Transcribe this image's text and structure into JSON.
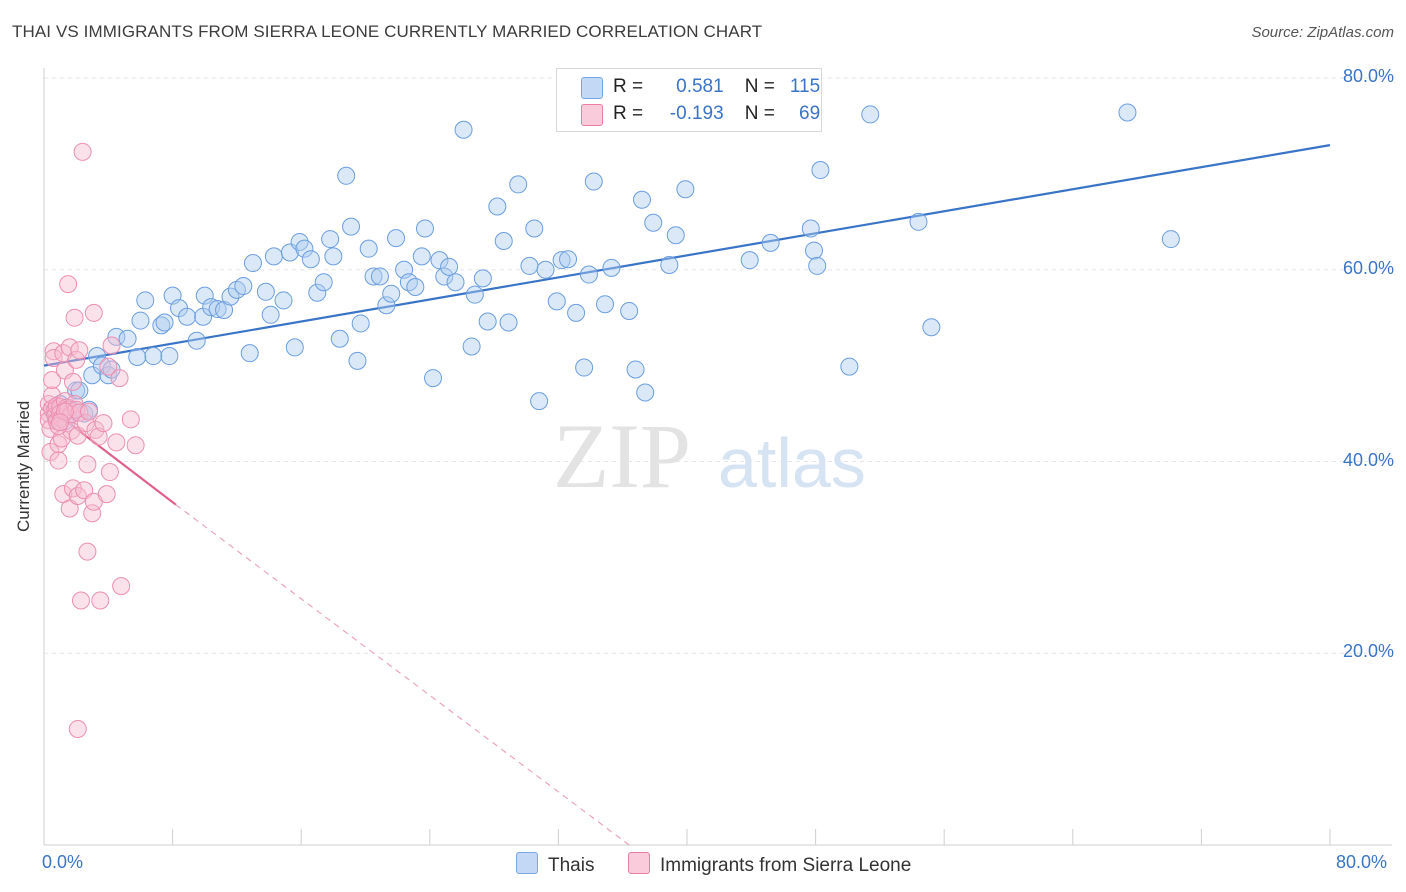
{
  "title": "THAI VS IMMIGRANTS FROM SIERRA LEONE CURRENTLY MARRIED CORRELATION CHART",
  "source": "Source: ZipAtlas.com",
  "watermark": {
    "zip": "ZIP",
    "atlas": "atlas"
  },
  "legend": {
    "r_label": "R =",
    "n_label": "N =",
    "series": [
      {
        "name": "Thais",
        "r": "0.581",
        "n": "115",
        "color": "#7aa7e4",
        "fill": "#aecbf0"
      },
      {
        "name": "Immigrants from Sierra Leone",
        "r": "-0.193",
        "n": "69",
        "color": "#e87fa3",
        "fill": "#f6bcd0"
      }
    ]
  },
  "chart_data": {
    "type": "scatter",
    "title": "THAI VS IMMIGRANTS FROM SIERRA LEONE CURRENTLY MARRIED CORRELATION CHART",
    "xlabel": "",
    "ylabel": "Currently Married",
    "xlim": [
      0,
      80
    ],
    "ylim": [
      0,
      80
    ],
    "x_ticks": [
      "0.0%",
      "80.0%"
    ],
    "y_ticks": [
      "20.0%",
      "40.0%",
      "60.0%",
      "80.0%"
    ],
    "grid": true,
    "legend_position": "top-center",
    "series": [
      {
        "name": "Thais",
        "color": "#3a74c6",
        "trend": {
          "x": [
            0,
            80
          ],
          "y": [
            50.0,
            73.0
          ],
          "style": "solid"
        },
        "points": [
          [
            0.6,
            45.2
          ],
          [
            0.8,
            44.5
          ],
          [
            1.0,
            46.0
          ],
          [
            1.2,
            45.0
          ],
          [
            1.5,
            45.6
          ],
          [
            1.8,
            45.3
          ],
          [
            2.0,
            47.4
          ],
          [
            2.2,
            47.4
          ],
          [
            2.5,
            45.0
          ],
          [
            3.0,
            49.0
          ],
          [
            3.3,
            51.0
          ],
          [
            3.6,
            50.0
          ],
          [
            4.0,
            49.0
          ],
          [
            4.2,
            49.6
          ],
          [
            4.5,
            53.0
          ],
          [
            5.2,
            52.8
          ],
          [
            6.0,
            54.7
          ],
          [
            6.3,
            56.8
          ],
          [
            6.8,
            51.0
          ],
          [
            7.3,
            54.2
          ],
          [
            7.8,
            51.0
          ],
          [
            8.0,
            57.3
          ],
          [
            8.4,
            56.0
          ],
          [
            8.9,
            55.1
          ],
          [
            9.5,
            52.6
          ],
          [
            9.9,
            55.1
          ],
          [
            10.0,
            57.3
          ],
          [
            10.4,
            56.1
          ],
          [
            10.8,
            55.9
          ],
          [
            11.2,
            55.8
          ],
          [
            11.6,
            57.2
          ],
          [
            12.0,
            57.9
          ],
          [
            12.4,
            58.3
          ],
          [
            12.8,
            51.3
          ],
          [
            13.0,
            60.7
          ],
          [
            13.8,
            57.7
          ],
          [
            14.1,
            55.3
          ],
          [
            14.3,
            61.4
          ],
          [
            14.9,
            56.8
          ],
          [
            15.3,
            61.8
          ],
          [
            15.6,
            51.9
          ],
          [
            15.9,
            62.9
          ],
          [
            16.2,
            62.2
          ],
          [
            16.6,
            61.1
          ],
          [
            17.0,
            57.6
          ],
          [
            17.4,
            58.7
          ],
          [
            17.8,
            63.2
          ],
          [
            18.0,
            61.4
          ],
          [
            18.4,
            52.8
          ],
          [
            18.8,
            69.8
          ],
          [
            19.1,
            64.5
          ],
          [
            19.5,
            50.5
          ],
          [
            19.7,
            54.4
          ],
          [
            20.2,
            62.2
          ],
          [
            20.5,
            59.3
          ],
          [
            20.9,
            59.3
          ],
          [
            21.3,
            56.3
          ],
          [
            21.6,
            57.5
          ],
          [
            21.9,
            63.3
          ],
          [
            22.4,
            60.0
          ],
          [
            22.7,
            58.7
          ],
          [
            23.1,
            58.2
          ],
          [
            23.5,
            61.4
          ],
          [
            23.7,
            64.3
          ],
          [
            24.2,
            48.7
          ],
          [
            24.6,
            61.0
          ],
          [
            24.9,
            59.3
          ],
          [
            25.2,
            60.3
          ],
          [
            25.6,
            58.7
          ],
          [
            26.1,
            74.6
          ],
          [
            26.6,
            52.0
          ],
          [
            26.8,
            57.4
          ],
          [
            27.3,
            59.1
          ],
          [
            27.6,
            54.6
          ],
          [
            28.2,
            66.6
          ],
          [
            28.6,
            63.0
          ],
          [
            28.9,
            54.5
          ],
          [
            29.5,
            68.9
          ],
          [
            30.2,
            60.4
          ],
          [
            30.5,
            64.3
          ],
          [
            30.8,
            46.3
          ],
          [
            31.2,
            60.0
          ],
          [
            31.9,
            56.7
          ],
          [
            32.2,
            61.0
          ],
          [
            32.6,
            61.1
          ],
          [
            33.1,
            55.5
          ],
          [
            33.6,
            49.8
          ],
          [
            33.9,
            59.5
          ],
          [
            34.2,
            69.2
          ],
          [
            34.9,
            56.4
          ],
          [
            35.3,
            60.2
          ],
          [
            36.4,
            55.7
          ],
          [
            36.8,
            49.6
          ],
          [
            37.2,
            67.3
          ],
          [
            37.4,
            47.2
          ],
          [
            37.9,
            64.9
          ],
          [
            38.9,
            60.5
          ],
          [
            39.3,
            63.6
          ],
          [
            39.9,
            68.4
          ],
          [
            43.9,
            61.0
          ],
          [
            45.2,
            62.8
          ],
          [
            47.7,
            64.3
          ],
          [
            47.9,
            62.0
          ],
          [
            48.1,
            60.4
          ],
          [
            48.3,
            70.4
          ],
          [
            50.1,
            49.9
          ],
          [
            51.4,
            76.2
          ],
          [
            54.4,
            65.0
          ],
          [
            55.2,
            54.0
          ],
          [
            67.4,
            76.4
          ],
          [
            70.1,
            63.2
          ],
          [
            7.5,
            54.5
          ],
          [
            1.3,
            44.2
          ],
          [
            2.8,
            45.4
          ],
          [
            5.8,
            50.9
          ]
        ]
      },
      {
        "name": "Immigrants from Sierra Leone",
        "color": "#e0608a",
        "trend": {
          "x": [
            0,
            8.2,
            36.4
          ],
          "y": [
            46.0,
            35.5,
            0
          ],
          "style": "solid-then-dashed"
        },
        "points": [
          [
            0.3,
            45.0
          ],
          [
            0.3,
            44.3
          ],
          [
            0.3,
            46.0
          ],
          [
            0.4,
            41.0
          ],
          [
            0.4,
            43.4
          ],
          [
            0.5,
            45.5
          ],
          [
            0.5,
            46.9
          ],
          [
            0.5,
            48.5
          ],
          [
            0.6,
            51.5
          ],
          [
            0.6,
            50.8
          ],
          [
            0.7,
            45.4
          ],
          [
            0.7,
            44.8
          ],
          [
            0.8,
            44.2
          ],
          [
            0.8,
            45.8
          ],
          [
            0.9,
            41.8
          ],
          [
            0.9,
            40.1
          ],
          [
            1.0,
            45.7
          ],
          [
            1.0,
            45.0
          ],
          [
            1.1,
            44.5
          ],
          [
            1.1,
            42.4
          ],
          [
            1.2,
            51.3
          ],
          [
            1.2,
            36.6
          ],
          [
            1.3,
            49.5
          ],
          [
            1.3,
            46.3
          ],
          [
            1.4,
            45.6
          ],
          [
            1.4,
            44.0
          ],
          [
            1.5,
            58.5
          ],
          [
            1.5,
            45.4
          ],
          [
            1.6,
            51.9
          ],
          [
            1.6,
            35.1
          ],
          [
            1.7,
            44.9
          ],
          [
            1.7,
            43.2
          ],
          [
            1.8,
            37.2
          ],
          [
            1.8,
            48.3
          ],
          [
            1.9,
            55.0
          ],
          [
            1.9,
            46.0
          ],
          [
            2.0,
            50.6
          ],
          [
            2.0,
            45.4
          ],
          [
            2.1,
            42.7
          ],
          [
            2.1,
            36.4
          ],
          [
            2.2,
            51.6
          ],
          [
            2.2,
            45.1
          ],
          [
            2.3,
            25.5
          ],
          [
            2.4,
            72.3
          ],
          [
            2.5,
            37.0
          ],
          [
            2.6,
            44.0
          ],
          [
            2.7,
            30.6
          ],
          [
            2.7,
            39.7
          ],
          [
            2.8,
            45.2
          ],
          [
            3.0,
            34.6
          ],
          [
            3.1,
            35.8
          ],
          [
            3.1,
            55.5
          ],
          [
            3.2,
            43.3
          ],
          [
            3.4,
            42.6
          ],
          [
            3.5,
            25.5
          ],
          [
            3.7,
            44.0
          ],
          [
            3.9,
            36.6
          ],
          [
            4.0,
            49.9
          ],
          [
            4.1,
            38.9
          ],
          [
            4.2,
            52.1
          ],
          [
            4.5,
            42.0
          ],
          [
            4.7,
            48.7
          ],
          [
            4.8,
            27.0
          ],
          [
            5.4,
            44.4
          ],
          [
            5.7,
            41.7
          ],
          [
            2.1,
            12.1
          ],
          [
            0.9,
            43.7
          ],
          [
            1.3,
            45.2
          ],
          [
            1.0,
            44.1
          ]
        ]
      }
    ]
  }
}
